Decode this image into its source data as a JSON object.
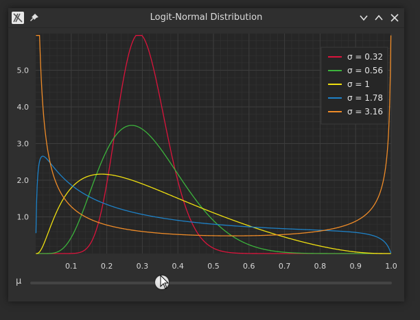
{
  "window": {
    "title": "Logit-Normal Distribution",
    "icons": {
      "app": "app-icon",
      "pin": "pin-icon",
      "minimize": "chevron-down-icon",
      "maximize": "chevron-up-icon",
      "close": "close-icon"
    }
  },
  "slider": {
    "label": "μ",
    "value_fraction": 0.365
  },
  "chart_data": {
    "type": "line",
    "title": "",
    "xlabel": "",
    "ylabel": "",
    "xlim": [
      0,
      1
    ],
    "ylim": [
      0,
      6
    ],
    "x_ticks": [
      "0.1",
      "0.2",
      "0.3",
      "0.4",
      "0.5",
      "0.6",
      "0.7",
      "0.8",
      "0.9",
      "1.0"
    ],
    "y_ticks": [
      "1.0",
      "2.0",
      "3.0",
      "4.0",
      "5.0"
    ],
    "grid": true,
    "legend_position": "top-right",
    "mu": -0.85,
    "series": [
      {
        "name": "σ = 0.32",
        "sigma": 0.32,
        "color": "#dc143c"
      },
      {
        "name": "σ = 0.56",
        "sigma": 0.56,
        "color": "#3cb43c"
      },
      {
        "name": "σ = 1",
        "sigma": 1.0,
        "color": "#f0e010"
      },
      {
        "name": "σ = 1.78",
        "sigma": 1.78,
        "color": "#1e82c8"
      },
      {
        "name": "σ = 3.16",
        "sigma": 3.16,
        "color": "#f08c28"
      }
    ]
  }
}
